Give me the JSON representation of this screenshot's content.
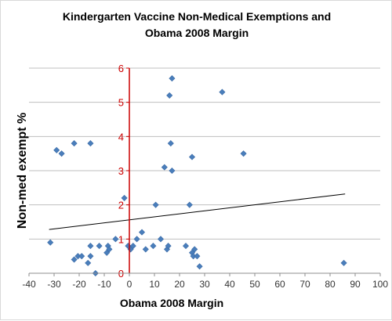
{
  "chart_data": {
    "type": "scatter",
    "title_lines": [
      "Kindergarten Vaccine Non-Medical Exemptions and",
      "Obama 2008 Margin"
    ],
    "xlabel": "Obama  2008 Margin",
    "ylabel": "Non-med  exempt %",
    "xlim": [
      -40,
      100
    ],
    "ylim": [
      0,
      6
    ],
    "x_ticks": [
      "-40",
      "-30",
      "-20",
      "-10",
      "0",
      "10",
      "20",
      "30",
      "40",
      "50",
      "60",
      "70",
      "80",
      "90",
      "100"
    ],
    "y_ticks": [
      "0",
      "1",
      "2",
      "3",
      "4",
      "5",
      "6"
    ],
    "grid": "horizontal",
    "legend": "none",
    "marker_color": "#4a7ebb",
    "y_axis_color": "#cc0000",
    "trendline": {
      "x": [
        -32,
        86
      ],
      "y": [
        1.28,
        2.32
      ],
      "color": "#000000"
    },
    "points": [
      {
        "x": -31.5,
        "y": 0.9
      },
      {
        "x": -29,
        "y": 3.6
      },
      {
        "x": -27,
        "y": 3.5
      },
      {
        "x": -22,
        "y": 3.8
      },
      {
        "x": -15.5,
        "y": 3.8
      },
      {
        "x": -2,
        "y": 2.2
      },
      {
        "x": -22,
        "y": 0.4
      },
      {
        "x": -20.5,
        "y": 0.5
      },
      {
        "x": -19,
        "y": 0.5
      },
      {
        "x": -16.5,
        "y": 0.3
      },
      {
        "x": -15.5,
        "y": 0.5
      },
      {
        "x": -15.5,
        "y": 0.8
      },
      {
        "x": -13.5,
        "y": 0.0
      },
      {
        "x": -12,
        "y": 0.8
      },
      {
        "x": -9,
        "y": 0.6
      },
      {
        "x": -8.5,
        "y": 0.8
      },
      {
        "x": -8,
        "y": 0.7
      },
      {
        "x": -5.5,
        "y": 1.0
      },
      {
        "x": -0.5,
        "y": 0.8
      },
      {
        "x": 0.5,
        "y": 0.7
      },
      {
        "x": 1.5,
        "y": 0.8
      },
      {
        "x": 3,
        "y": 1.0
      },
      {
        "x": 5,
        "y": 1.2
      },
      {
        "x": 6.5,
        "y": 0.7
      },
      {
        "x": 9.5,
        "y": 0.8
      },
      {
        "x": 10.5,
        "y": 2.0
      },
      {
        "x": 12.5,
        "y": 1.0
      },
      {
        "x": 14,
        "y": 3.1
      },
      {
        "x": 15,
        "y": 0.7
      },
      {
        "x": 15.5,
        "y": 0.8
      },
      {
        "x": 16,
        "y": 5.2
      },
      {
        "x": 16.5,
        "y": 3.8
      },
      {
        "x": 17,
        "y": 5.7
      },
      {
        "x": 17,
        "y": 3.0
      },
      {
        "x": 22.5,
        "y": 0.8
      },
      {
        "x": 24,
        "y": 2.0
      },
      {
        "x": 25,
        "y": 3.4
      },
      {
        "x": 25,
        "y": 0.6
      },
      {
        "x": 25.5,
        "y": 0.5
      },
      {
        "x": 26,
        "y": 0.7
      },
      {
        "x": 27,
        "y": 0.5
      },
      {
        "x": 28,
        "y": 0.2
      },
      {
        "x": 37,
        "y": 5.3
      },
      {
        "x": 45.5,
        "y": 3.5
      },
      {
        "x": 85.5,
        "y": 0.3
      }
    ]
  }
}
